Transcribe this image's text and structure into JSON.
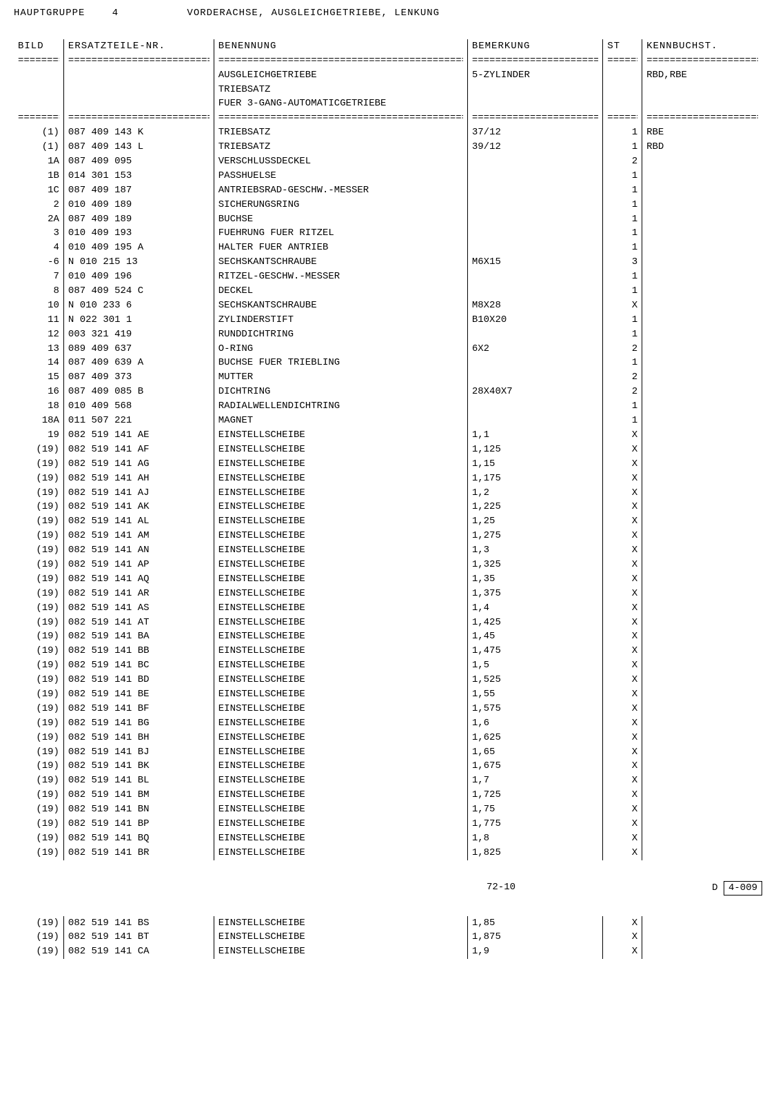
{
  "header": {
    "group_label": "HAUPTGRUPPE",
    "group_number": "4",
    "title": "VORDERACHSE, AUSGLEICHGETRIEBE, LENKUNG"
  },
  "columns": {
    "bild": "BILD",
    "part": "ERSATZTEILE-NR.",
    "name": "BENENNUNG",
    "bem": "BEMERKUNG",
    "st": "ST",
    "kb": "KENNBUCHST."
  },
  "intro_rows": [
    {
      "bild": "",
      "part": "",
      "name": "AUSGLEICHGETRIEBE",
      "bem": "5-ZYLINDER",
      "st": "",
      "kb": "RBD,RBE"
    },
    {
      "bild": "",
      "part": "",
      "name": "TRIEBSATZ",
      "bem": "",
      "st": "",
      "kb": ""
    },
    {
      "bild": "",
      "part": "",
      "name": "FUER 3-GANG-AUTOMATICGETRIEBE",
      "bem": "",
      "st": "",
      "kb": ""
    }
  ],
  "rows": [
    {
      "bild": "(1)",
      "part": "087 409 143 K",
      "name": "TRIEBSATZ",
      "bem": "37/12",
      "st": "1",
      "kb": "RBE"
    },
    {
      "bild": "(1)",
      "part": "087 409 143 L",
      "name": "TRIEBSATZ",
      "bem": "39/12",
      "st": "1",
      "kb": "RBD"
    },
    {
      "bild": "1A",
      "part": "087 409 095",
      "name": "VERSCHLUSSDECKEL",
      "bem": "",
      "st": "2",
      "kb": ""
    },
    {
      "bild": "1B",
      "part": "014 301 153",
      "name": "PASSHUELSE",
      "bem": "",
      "st": "1",
      "kb": ""
    },
    {
      "bild": "1C",
      "part": "087 409 187",
      "name": "ANTRIEBSRAD-GESCHW.-MESSER",
      "bem": "",
      "st": "1",
      "kb": ""
    },
    {
      "bild": "2",
      "part": "010 409 189",
      "name": "SICHERUNGSRING",
      "bem": "",
      "st": "1",
      "kb": ""
    },
    {
      "bild": "2A",
      "part": "087 409 189",
      "name": "BUCHSE",
      "bem": "",
      "st": "1",
      "kb": ""
    },
    {
      "bild": "3",
      "part": "010 409 193",
      "name": "FUEHRUNG FUER RITZEL",
      "bem": "",
      "st": "1",
      "kb": ""
    },
    {
      "bild": "4",
      "part": "010 409 195 A",
      "name": "HALTER FUER ANTRIEB",
      "bem": "",
      "st": "1",
      "kb": ""
    },
    {
      "bild": "-6",
      "part": "N   010 215 13",
      "name": "SECHSKANTSCHRAUBE",
      "bem": "M6X15",
      "st": "3",
      "kb": ""
    },
    {
      "bild": "7",
      "part": "010 409 196",
      "name": "RITZEL-GESCHW.-MESSER",
      "bem": "",
      "st": "1",
      "kb": ""
    },
    {
      "bild": "8",
      "part": "087 409 524 C",
      "name": "DECKEL",
      "bem": "",
      "st": "1",
      "kb": ""
    },
    {
      "bild": "10",
      "part": "N   010 233 6",
      "name": "SECHSKANTSCHRAUBE",
      "bem": "M8X28",
      "st": "X",
      "kb": ""
    },
    {
      "bild": "11",
      "part": "N   022 301 1",
      "name": "ZYLINDERSTIFT",
      "bem": "B10X20",
      "st": "1",
      "kb": ""
    },
    {
      "bild": "12",
      "part": "003 321 419",
      "name": "RUNDDICHTRING",
      "bem": "",
      "st": "1",
      "kb": ""
    },
    {
      "bild": "13",
      "part": "089 409 637",
      "name": "O-RING",
      "bem": "6X2",
      "st": "2",
      "kb": ""
    },
    {
      "bild": "14",
      "part": "087 409 639 A",
      "name": "BUCHSE FUER TRIEBLING",
      "bem": "",
      "st": "1",
      "kb": ""
    },
    {
      "bild": "15",
      "part": "087 409 373",
      "name": "MUTTER",
      "bem": "",
      "st": "2",
      "kb": ""
    },
    {
      "bild": "16",
      "part": "087 409 085 B",
      "name": "DICHTRING",
      "bem": "28X40X7",
      "st": "2",
      "kb": ""
    },
    {
      "bild": "18",
      "part": "010 409 568",
      "name": "RADIALWELLENDICHTRING",
      "bem": "",
      "st": "1",
      "kb": ""
    },
    {
      "bild": "18A",
      "part": "011 507 221",
      "name": "MAGNET",
      "bem": "",
      "st": "1",
      "kb": ""
    },
    {
      "bild": "19",
      "part": "082 519 141 AE",
      "name": "EINSTELLSCHEIBE",
      "bem": "1,1",
      "st": "X",
      "kb": ""
    },
    {
      "bild": "(19)",
      "part": "082 519 141 AF",
      "name": "EINSTELLSCHEIBE",
      "bem": "1,125",
      "st": "X",
      "kb": ""
    },
    {
      "bild": "(19)",
      "part": "082 519 141 AG",
      "name": "EINSTELLSCHEIBE",
      "bem": "1,15",
      "st": "X",
      "kb": ""
    },
    {
      "bild": "(19)",
      "part": "082 519 141 AH",
      "name": "EINSTELLSCHEIBE",
      "bem": "1,175",
      "st": "X",
      "kb": ""
    },
    {
      "bild": "(19)",
      "part": "082 519 141 AJ",
      "name": "EINSTELLSCHEIBE",
      "bem": "1,2",
      "st": "X",
      "kb": ""
    },
    {
      "bild": "(19)",
      "part": "082 519 141 AK",
      "name": "EINSTELLSCHEIBE",
      "bem": "1,225",
      "st": "X",
      "kb": ""
    },
    {
      "bild": "(19)",
      "part": "082 519 141 AL",
      "name": "EINSTELLSCHEIBE",
      "bem": "1,25",
      "st": "X",
      "kb": ""
    },
    {
      "bild": "(19)",
      "part": "082 519 141 AM",
      "name": "EINSTELLSCHEIBE",
      "bem": "1,275",
      "st": "X",
      "kb": ""
    },
    {
      "bild": "(19)",
      "part": "082 519 141 AN",
      "name": "EINSTELLSCHEIBE",
      "bem": "1,3",
      "st": "X",
      "kb": ""
    },
    {
      "bild": "(19)",
      "part": "082 519 141 AP",
      "name": "EINSTELLSCHEIBE",
      "bem": "1,325",
      "st": "X",
      "kb": ""
    },
    {
      "bild": "(19)",
      "part": "082 519 141 AQ",
      "name": "EINSTELLSCHEIBE",
      "bem": "1,35",
      "st": "X",
      "kb": ""
    },
    {
      "bild": "(19)",
      "part": "082 519 141 AR",
      "name": "EINSTELLSCHEIBE",
      "bem": "1,375",
      "st": "X",
      "kb": ""
    },
    {
      "bild": "(19)",
      "part": "082 519 141 AS",
      "name": "EINSTELLSCHEIBE",
      "bem": "1,4",
      "st": "X",
      "kb": ""
    },
    {
      "bild": "(19)",
      "part": "082 519 141 AT",
      "name": "EINSTELLSCHEIBE",
      "bem": "1,425",
      "st": "X",
      "kb": ""
    },
    {
      "bild": "(19)",
      "part": "082 519 141 BA",
      "name": "EINSTELLSCHEIBE",
      "bem": "1,45",
      "st": "X",
      "kb": ""
    },
    {
      "bild": "(19)",
      "part": "082 519 141 BB",
      "name": "EINSTELLSCHEIBE",
      "bem": "1,475",
      "st": "X",
      "kb": ""
    },
    {
      "bild": "(19)",
      "part": "082 519 141 BC",
      "name": "EINSTELLSCHEIBE",
      "bem": "1,5",
      "st": "X",
      "kb": ""
    },
    {
      "bild": "(19)",
      "part": "082 519 141 BD",
      "name": "EINSTELLSCHEIBE",
      "bem": "1,525",
      "st": "X",
      "kb": ""
    },
    {
      "bild": "(19)",
      "part": "082 519 141 BE",
      "name": "EINSTELLSCHEIBE",
      "bem": "1,55",
      "st": "X",
      "kb": ""
    },
    {
      "bild": "(19)",
      "part": "082 519 141 BF",
      "name": "EINSTELLSCHEIBE",
      "bem": "1,575",
      "st": "X",
      "kb": ""
    },
    {
      "bild": "(19)",
      "part": "082 519 141 BG",
      "name": "EINSTELLSCHEIBE",
      "bem": "1,6",
      "st": "X",
      "kb": ""
    },
    {
      "bild": "(19)",
      "part": "082 519 141 BH",
      "name": "EINSTELLSCHEIBE",
      "bem": "1,625",
      "st": "X",
      "kb": ""
    },
    {
      "bild": "(19)",
      "part": "082 519 141 BJ",
      "name": "EINSTELLSCHEIBE",
      "bem": "1,65",
      "st": "X",
      "kb": ""
    },
    {
      "bild": "(19)",
      "part": "082 519 141 BK",
      "name": "EINSTELLSCHEIBE",
      "bem": "1,675",
      "st": "X",
      "kb": ""
    },
    {
      "bild": "(19)",
      "part": "082 519 141 BL",
      "name": "EINSTELLSCHEIBE",
      "bem": "1,7",
      "st": "X",
      "kb": ""
    },
    {
      "bild": "(19)",
      "part": "082 519 141 BM",
      "name": "EINSTELLSCHEIBE",
      "bem": "1,725",
      "st": "X",
      "kb": ""
    },
    {
      "bild": "(19)",
      "part": "082 519 141 BN",
      "name": "EINSTELLSCHEIBE",
      "bem": "1,75",
      "st": "X",
      "kb": ""
    },
    {
      "bild": "(19)",
      "part": "082 519 141 BP",
      "name": "EINSTELLSCHEIBE",
      "bem": "1,775",
      "st": "X",
      "kb": ""
    },
    {
      "bild": "(19)",
      "part": "082 519 141 BQ",
      "name": "EINSTELLSCHEIBE",
      "bem": "1,8",
      "st": "X",
      "kb": ""
    },
    {
      "bild": "(19)",
      "part": "082 519 141 BR",
      "name": "EINSTELLSCHEIBE",
      "bem": "1,825",
      "st": "X",
      "kb": ""
    }
  ],
  "footer": {
    "page": "72-10",
    "right_prefix": "D",
    "right_code": "4-009"
  },
  "rows2": [
    {
      "bild": "(19)",
      "part": "082 519 141 BS",
      "name": "EINSTELLSCHEIBE",
      "bem": "1,85",
      "st": "X",
      "kb": ""
    },
    {
      "bild": "(19)",
      "part": "082 519 141 BT",
      "name": "EINSTELLSCHEIBE",
      "bem": "1,875",
      "st": "X",
      "kb": ""
    },
    {
      "bild": "(19)",
      "part": "082 519 141 CA",
      "name": "EINSTELLSCHEIBE",
      "bem": "1,9",
      "st": "X",
      "kb": ""
    }
  ]
}
